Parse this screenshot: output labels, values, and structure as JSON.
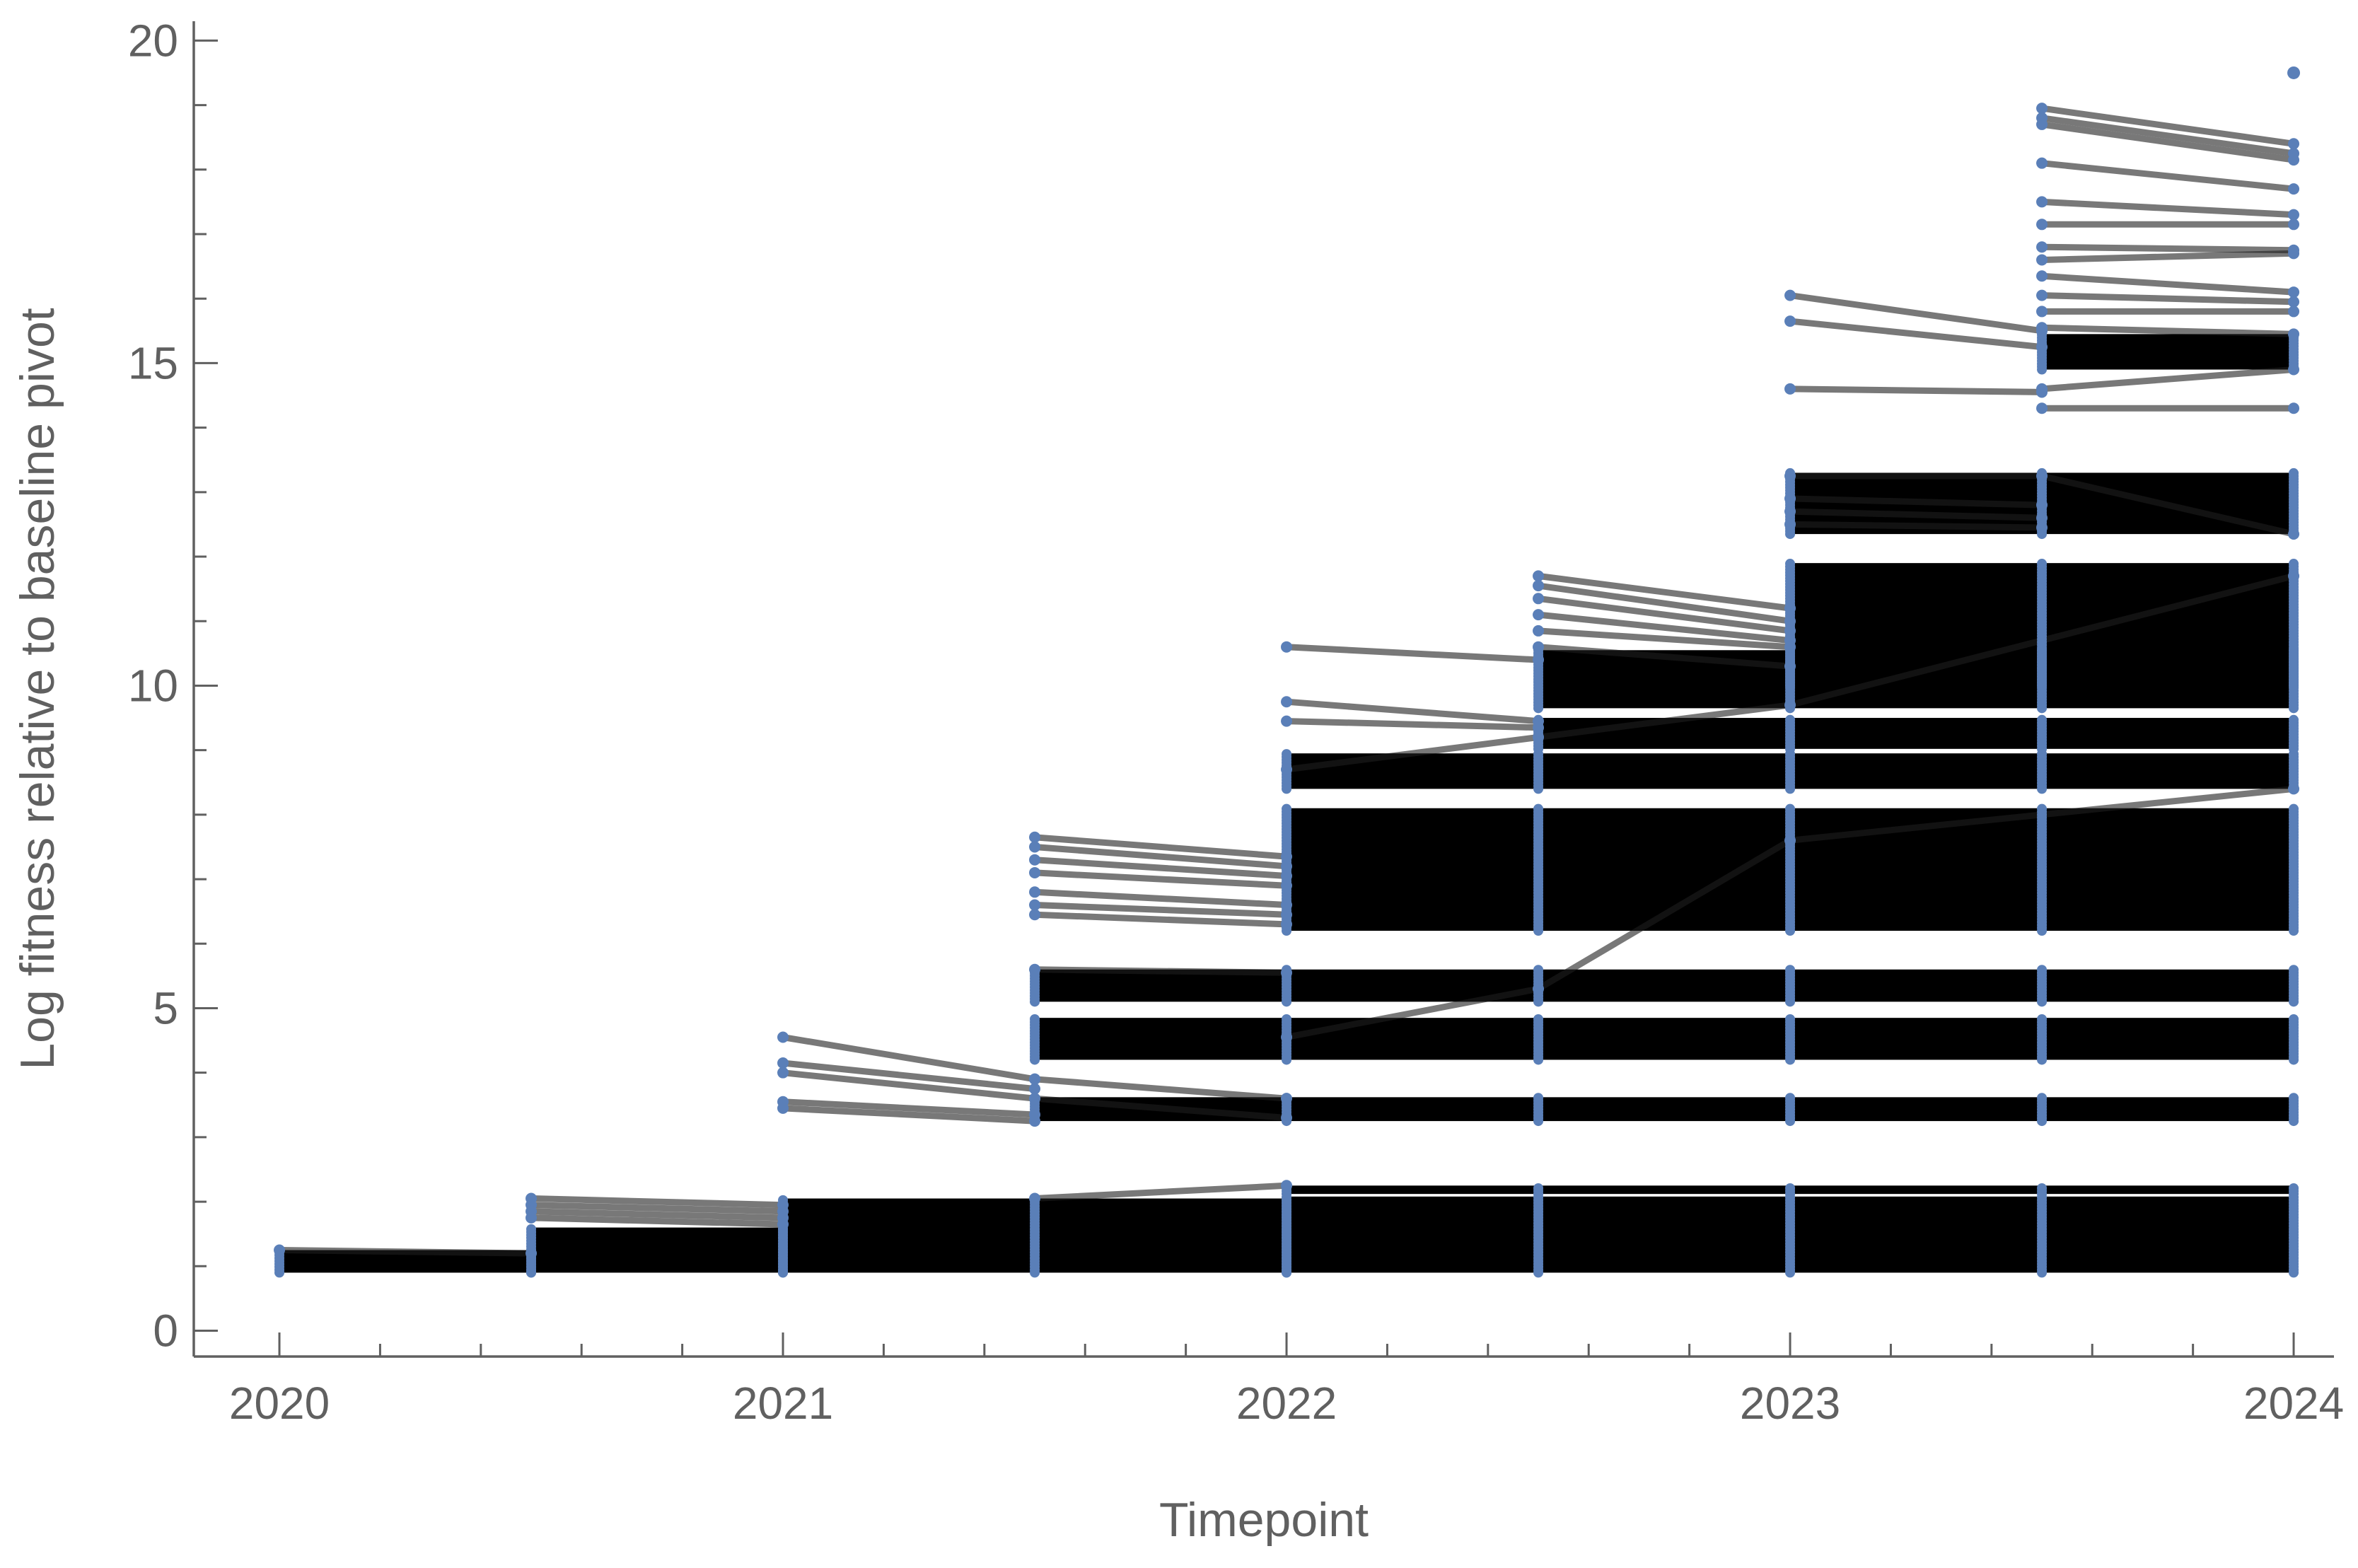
{
  "chart_data": {
    "type": "line",
    "title": "",
    "xlabel": "Timepoint",
    "ylabel": "Log fitness relative to baseline pivot",
    "xlim": [
      2019.83,
      2024.08
    ],
    "ylim": [
      -0.4,
      20.3
    ],
    "x_ticks": [
      2020,
      2021,
      2022,
      2023,
      2024
    ],
    "y_ticks": [
      0,
      5,
      10,
      15,
      20
    ],
    "timepoints": [
      2020,
      2020.5,
      2021,
      2021.5,
      2022,
      2022.5,
      2023,
      2023.5,
      2024
    ],
    "grid": false,
    "legend": "none",
    "colors": {
      "lines": "#1e1e1e",
      "points": "#5a7fb8",
      "axis": "#606060"
    },
    "bands": [
      {
        "x": [
          2020,
          2020.5
        ],
        "y": [
          0.9,
          1.25
        ]
      },
      {
        "x": [
          2020.5,
          2021
        ],
        "y": [
          0.9,
          1.6
        ]
      },
      {
        "x": [
          2021,
          2022
        ],
        "y": [
          0.9,
          2.05
        ]
      },
      {
        "x": [
          2022,
          2024
        ],
        "y": [
          0.9,
          2.08
        ]
      },
      {
        "x": [
          2022,
          2024
        ],
        "y": [
          2.12,
          2.25
        ]
      },
      {
        "x": [
          2021.5,
          2024
        ],
        "y": [
          3.25,
          3.62
        ]
      },
      {
        "x": [
          2021.5,
          2024
        ],
        "y": [
          4.2,
          4.85
        ]
      },
      {
        "x": [
          2021.5,
          2024
        ],
        "y": [
          5.1,
          5.6
        ]
      },
      {
        "x": [
          2022,
          2024
        ],
        "y": [
          6.2,
          8.1
        ]
      },
      {
        "x": [
          2022,
          2024
        ],
        "y": [
          8.4,
          8.95
        ]
      },
      {
        "x": [
          2022.5,
          2024
        ],
        "y": [
          9.02,
          9.5
        ]
      },
      {
        "x": [
          2022.5,
          2024
        ],
        "y": [
          9.65,
          10.55
        ]
      },
      {
        "x": [
          2023,
          2024
        ],
        "y": [
          10.0,
          11.9
        ]
      },
      {
        "x": [
          2023,
          2024
        ],
        "y": [
          12.35,
          13.3
        ]
      },
      {
        "x": [
          2023.5,
          2024
        ],
        "y": [
          14.9,
          15.45
        ]
      }
    ],
    "trajectories": [
      {
        "x": [
          2020,
          2020.5
        ],
        "y": [
          1.25,
          1.2
        ]
      },
      {
        "x": [
          2020.5,
          2021
        ],
        "y": [
          2.05,
          1.95
        ]
      },
      {
        "x": [
          2020.5,
          2021
        ],
        "y": [
          1.95,
          1.85
        ]
      },
      {
        "x": [
          2020.5,
          2021
        ],
        "y": [
          1.85,
          1.75
        ]
      },
      {
        "x": [
          2020.5,
          2021
        ],
        "y": [
          1.75,
          1.65
        ]
      },
      {
        "x": [
          2021.5,
          2022
        ],
        "y": [
          2.05,
          2.25
        ]
      },
      {
        "x": [
          2021,
          2021.5
        ],
        "y": [
          4.55,
          3.9
        ]
      },
      {
        "x": [
          2021,
          2021.5
        ],
        "y": [
          4.15,
          3.75
        ]
      },
      {
        "x": [
          2021,
          2021.5
        ],
        "y": [
          4.0,
          3.6
        ]
      },
      {
        "x": [
          2021,
          2021.5
        ],
        "y": [
          3.55,
          3.35
        ]
      },
      {
        "x": [
          2021,
          2021.5
        ],
        "y": [
          3.45,
          3.25
        ]
      },
      {
        "x": [
          2021.5,
          2022
        ],
        "y": [
          3.9,
          3.6
        ]
      },
      {
        "x": [
          2021.5,
          2022
        ],
        "y": [
          3.6,
          3.3
        ]
      },
      {
        "x": [
          2021.5,
          2022
        ],
        "y": [
          7.65,
          7.35
        ]
      },
      {
        "x": [
          2021.5,
          2022
        ],
        "y": [
          7.5,
          7.2
        ]
      },
      {
        "x": [
          2021.5,
          2022
        ],
        "y": [
          7.3,
          7.05
        ]
      },
      {
        "x": [
          2021.5,
          2022
        ],
        "y": [
          7.1,
          6.9
        ]
      },
      {
        "x": [
          2021.5,
          2022
        ],
        "y": [
          6.8,
          6.6
        ]
      },
      {
        "x": [
          2021.5,
          2022
        ],
        "y": [
          6.6,
          6.45
        ]
      },
      {
        "x": [
          2021.5,
          2022
        ],
        "y": [
          6.45,
          6.3
        ]
      },
      {
        "x": [
          2021.5,
          2022
        ],
        "y": [
          5.6,
          5.55
        ]
      },
      {
        "x": [
          2022,
          2022.5
        ],
        "y": [
          10.6,
          10.4
        ]
      },
      {
        "x": [
          2022,
          2022.5
        ],
        "y": [
          9.75,
          9.45
        ]
      },
      {
        "x": [
          2022,
          2022.5
        ],
        "y": [
          9.45,
          9.35
        ]
      },
      {
        "x": [
          2022,
          2022.5,
          2023,
          2024
        ],
        "y": [
          4.55,
          5.3,
          7.6,
          8.4
        ]
      },
      {
        "x": [
          2022,
          2022.5,
          2023,
          2024
        ],
        "y": [
          8.7,
          9.2,
          9.7,
          11.7
        ]
      },
      {
        "x": [
          2022.5,
          2023
        ],
        "y": [
          11.7,
          11.2
        ]
      },
      {
        "x": [
          2022.5,
          2023
        ],
        "y": [
          11.55,
          11.0
        ]
      },
      {
        "x": [
          2022.5,
          2023
        ],
        "y": [
          11.35,
          10.85
        ]
      },
      {
        "x": [
          2022.5,
          2023
        ],
        "y": [
          11.1,
          10.7
        ]
      },
      {
        "x": [
          2022.5,
          2023
        ],
        "y": [
          10.85,
          10.6
        ]
      },
      {
        "x": [
          2022.5,
          2023
        ],
        "y": [
          10.6,
          10.3
        ]
      },
      {
        "x": [
          2023,
          2023.5
        ],
        "y": [
          16.05,
          15.5
        ]
      },
      {
        "x": [
          2023,
          2023.5
        ],
        "y": [
          15.65,
          15.25
        ]
      },
      {
        "x": [
          2023,
          2023.5
        ],
        "y": [
          14.6,
          14.55
        ]
      },
      {
        "x": [
          2023,
          2023.5,
          2024
        ],
        "y": [
          13.25,
          13.25,
          12.35
        ]
      },
      {
        "x": [
          2023,
          2023.5
        ],
        "y": [
          12.9,
          12.8
        ]
      },
      {
        "x": [
          2023,
          2023.5
        ],
        "y": [
          12.7,
          12.6
        ]
      },
      {
        "x": [
          2023,
          2023.5
        ],
        "y": [
          12.5,
          12.45
        ]
      },
      {
        "x": [
          2023.5,
          2024
        ],
        "y": [
          18.95,
          18.4
        ]
      },
      {
        "x": [
          2023.5,
          2024
        ],
        "y": [
          18.8,
          18.25
        ]
      },
      {
        "x": [
          2023.5,
          2024
        ],
        "y": [
          18.7,
          18.15
        ]
      },
      {
        "x": [
          2023.5,
          2024
        ],
        "y": [
          18.1,
          17.7
        ]
      },
      {
        "x": [
          2023.5,
          2024
        ],
        "y": [
          17.5,
          17.3
        ]
      },
      {
        "x": [
          2023.5,
          2024
        ],
        "y": [
          17.15,
          17.15
        ]
      },
      {
        "x": [
          2023.5,
          2024
        ],
        "y": [
          16.8,
          16.75
        ]
      },
      {
        "x": [
          2023.5,
          2024
        ],
        "y": [
          16.6,
          16.7
        ]
      },
      {
        "x": [
          2023.5,
          2024
        ],
        "y": [
          16.35,
          16.1
        ]
      },
      {
        "x": [
          2023.5,
          2024
        ],
        "y": [
          16.05,
          15.95
        ]
      },
      {
        "x": [
          2023.5,
          2024
        ],
        "y": [
          15.8,
          15.8
        ]
      },
      {
        "x": [
          2023.5,
          2024
        ],
        "y": [
          15.55,
          15.45
        ]
      },
      {
        "x": [
          2023.5,
          2024
        ],
        "y": [
          14.6,
          14.9
        ]
      },
      {
        "x": [
          2023.5,
          2024
        ],
        "y": [
          14.3,
          14.3
        ]
      }
    ],
    "isolated_points": [
      {
        "x": 2024,
        "y": 19.5
      }
    ]
  }
}
